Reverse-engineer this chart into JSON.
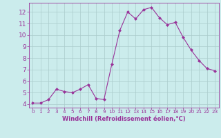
{
  "x": [
    0,
    1,
    2,
    3,
    4,
    5,
    6,
    7,
    8,
    9,
    10,
    11,
    12,
    13,
    14,
    15,
    16,
    17,
    18,
    19,
    20,
    21,
    22,
    23
  ],
  "y": [
    4.1,
    4.1,
    4.4,
    5.3,
    5.1,
    5.0,
    5.3,
    5.7,
    4.5,
    4.4,
    7.5,
    10.4,
    12.0,
    11.4,
    12.2,
    12.4,
    11.5,
    10.9,
    11.1,
    9.8,
    8.7,
    7.8,
    7.1,
    6.9
  ],
  "line_color": "#993399",
  "marker": "D",
  "marker_size": 2.0,
  "bg_color": "#cbecec",
  "grid_color": "#aacccc",
  "xlabel": "Windchill (Refroidissement éolien,°C)",
  "ylim": [
    3.7,
    12.8
  ],
  "xlim": [
    -0.5,
    23.5
  ],
  "yticks": [
    4,
    5,
    6,
    7,
    8,
    9,
    10,
    11,
    12
  ],
  "xticks": [
    0,
    1,
    2,
    3,
    4,
    5,
    6,
    7,
    8,
    9,
    10,
    11,
    12,
    13,
    14,
    15,
    16,
    17,
    18,
    19,
    20,
    21,
    22,
    23
  ],
  "tick_color": "#993399",
  "label_color": "#993399",
  "axis_color": "#993399",
  "xlabel_fontsize": 6.0,
  "ytick_fontsize": 6.5,
  "xtick_fontsize": 5.2
}
